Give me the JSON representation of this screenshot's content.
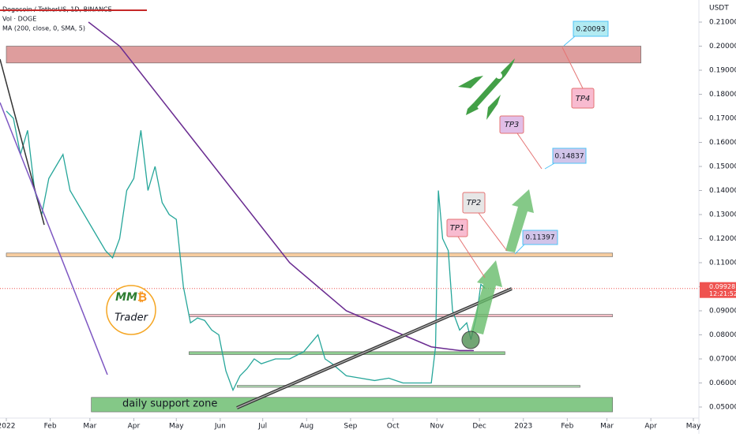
{
  "chart_data": {
    "type": "line",
    "title": "Dogecoin / TetherUS, 1D, BINANCE",
    "indicators": [
      "Vol · DOGE",
      "MA (200, close, 0, SMA, 5)"
    ],
    "y_unit": "USDT",
    "xlim": [
      0,
      485
    ],
    "xticks": [
      {
        "value": 0,
        "label": "2022"
      },
      {
        "value": 31,
        "label": "Feb"
      },
      {
        "value": 59,
        "label": "Mar"
      },
      {
        "value": 90,
        "label": "Apr"
      },
      {
        "value": 120,
        "label": "May"
      },
      {
        "value": 151,
        "label": "Jun"
      },
      {
        "value": 181,
        "label": "Jul"
      },
      {
        "value": 212,
        "label": "Aug"
      },
      {
        "value": 243,
        "label": "Sep"
      },
      {
        "value": 273,
        "label": "Oct"
      },
      {
        "value": 304,
        "label": "Nov"
      },
      {
        "value": 334,
        "label": "Dec"
      },
      {
        "value": 365,
        "label": "2023"
      },
      {
        "value": 396,
        "label": "Feb"
      },
      {
        "value": 424,
        "label": "Mar"
      },
      {
        "value": 455,
        "label": "Apr"
      },
      {
        "value": 485,
        "label": "May"
      }
    ],
    "ylim": [
      0.05,
      0.21
    ],
    "yticks": [
      {
        "value": 0.05,
        "label": "0.05000"
      },
      {
        "value": 0.06,
        "label": "0.06000"
      },
      {
        "value": 0.07,
        "label": "0.07000"
      },
      {
        "value": 0.08,
        "label": "0.08000"
      },
      {
        "value": 0.09,
        "label": "0.09000"
      },
      {
        "value": 0.1,
        "label": "0.10000"
      },
      {
        "value": 0.11,
        "label": "0.11000"
      },
      {
        "value": 0.12,
        "label": "0.12000"
      },
      {
        "value": 0.13,
        "label": "0.13000"
      },
      {
        "value": 0.14,
        "label": "0.14000"
      },
      {
        "value": 0.15,
        "label": "0.15000"
      },
      {
        "value": 0.16,
        "label": "0.16000"
      },
      {
        "value": 0.17,
        "label": "0.17000"
      },
      {
        "value": 0.18,
        "label": "0.18000"
      },
      {
        "value": 0.19,
        "label": "0.19000"
      },
      {
        "value": 0.2,
        "label": "0.20000"
      },
      {
        "value": 0.21,
        "label": "0.21000"
      }
    ],
    "grid": false,
    "series": [
      {
        "name": "DOGEUSDT",
        "color": "#26a69a",
        "x": [
          0,
          5,
          10,
          15,
          20,
          25,
          30,
          35,
          40,
          45,
          50,
          55,
          60,
          65,
          70,
          75,
          80,
          85,
          90,
          95,
          100,
          105,
          110,
          115,
          120,
          125,
          130,
          135,
          140,
          145,
          150,
          155,
          160,
          165,
          170,
          175,
          180,
          190,
          200,
          210,
          220,
          225,
          230,
          240,
          250,
          260,
          270,
          280,
          290,
          300,
          303,
          305,
          308,
          312,
          315,
          320,
          325,
          328,
          332,
          335,
          338
        ],
        "values": [
          0.173,
          0.17,
          0.155,
          0.165,
          0.14,
          0.13,
          0.145,
          0.15,
          0.155,
          0.14,
          0.135,
          0.13,
          0.125,
          0.12,
          0.115,
          0.112,
          0.12,
          0.14,
          0.145,
          0.165,
          0.14,
          0.15,
          0.135,
          0.13,
          0.128,
          0.1,
          0.085,
          0.087,
          0.086,
          0.082,
          0.08,
          0.065,
          0.057,
          0.063,
          0.066,
          0.07,
          0.068,
          0.07,
          0.07,
          0.073,
          0.08,
          0.07,
          0.068,
          0.063,
          0.062,
          0.061,
          0.062,
          0.06,
          0.06,
          0.06,
          0.075,
          0.14,
          0.12,
          0.115,
          0.09,
          0.082,
          0.085,
          0.078,
          0.088,
          0.101,
          0.0993
        ]
      },
      {
        "name": "MA 200",
        "color": "#6a2c91",
        "x": [
          58,
          80,
          100,
          120,
          140,
          160,
          180,
          200,
          220,
          240,
          260,
          280,
          300,
          320,
          330
        ],
        "values": [
          0.21,
          0.2,
          0.185,
          0.17,
          0.155,
          0.14,
          0.125,
          0.11,
          0.1,
          0.09,
          0.085,
          0.08,
          0.075,
          0.0735,
          0.0735
        ]
      }
    ],
    "zones": [
      {
        "low": 0.193,
        "high": 0.2,
        "x": [
          0,
          448
        ],
        "color": "#d98c8c"
      },
      {
        "low": 0.1125,
        "high": 0.114,
        "x": [
          0,
          428
        ],
        "color": "#f5c48f"
      },
      {
        "low": 0.0875,
        "high": 0.0885,
        "x": [
          129,
          428
        ],
        "color": "#f3b5bd"
      },
      {
        "low": 0.0718,
        "high": 0.073,
        "x": [
          129,
          352
        ],
        "color": "#7cc47f"
      },
      {
        "low": 0.0582,
        "high": 0.059,
        "x": [
          163,
          405
        ],
        "color": "#a5d6a7"
      },
      {
        "low": 0.048,
        "high": 0.054,
        "x": [
          60,
          428
        ],
        "color": "#6fbf73"
      }
    ],
    "last_price": {
      "value": 0.09928,
      "label": "0.09928",
      "timer": "12:21:52"
    },
    "targets": [
      {
        "name": "TP1"
      },
      {
        "name": "TP2",
        "price": "0.11397"
      },
      {
        "name": "TP3",
        "price": "0.14837"
      },
      {
        "name": "TP4",
        "price": "0.20093"
      }
    ],
    "zone_label": "daily support zone",
    "logo": {
      "mark": "MM",
      "symbol": "₿",
      "name": "Trader"
    }
  }
}
